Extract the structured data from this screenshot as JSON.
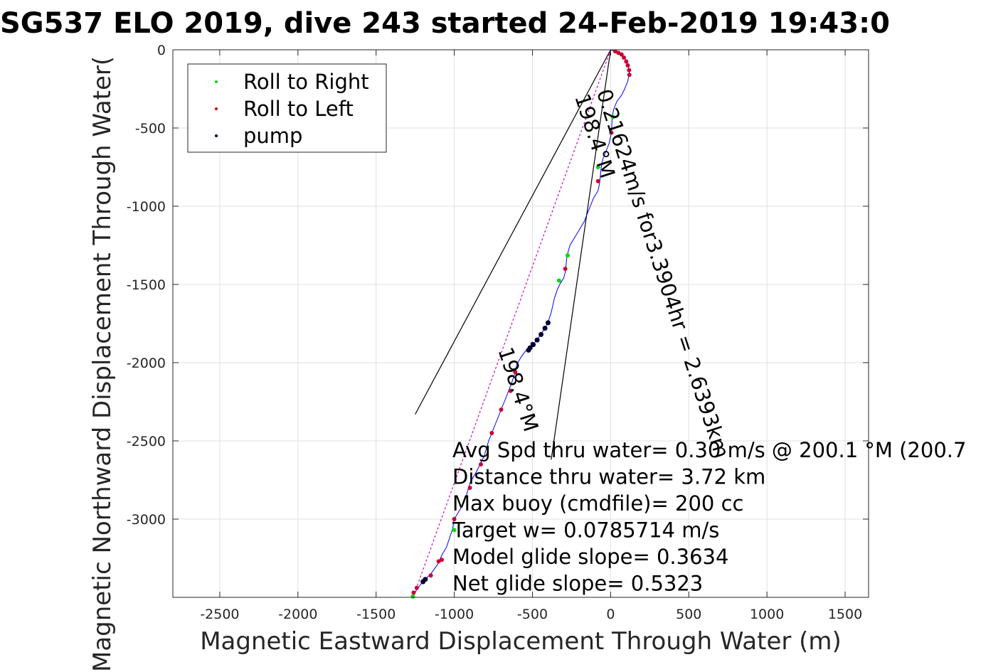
{
  "chart_data": {
    "type": "scatter",
    "title": "SG537 ELO 2019, dive 243 started 24-Feb-2019 19:43:0",
    "xlabel": "Magnetic Eastward Displacement Through Water (m)",
    "ylabel": "Magnetic Northward Displacement Through Water(",
    "xlim": [
      -2800,
      1650
    ],
    "ylim": [
      -3500,
      0
    ],
    "xticks": [
      -2500,
      -2000,
      -1500,
      -1000,
      -500,
      0,
      500,
      1000,
      1500
    ],
    "yticks": [
      0,
      -500,
      -1000,
      -1500,
      -2000,
      -2500,
      -3000
    ],
    "grid": true,
    "legend_position": "top-left",
    "legend": [
      {
        "label": "Roll to Right",
        "color": "#00dd00"
      },
      {
        "label": "Roll to Left",
        "color": "#dd0000"
      },
      {
        "label": "pump",
        "color": "#000033"
      }
    ],
    "track": {
      "color": "#0000ff",
      "points": [
        [
          0,
          0
        ],
        [
          20,
          -8
        ],
        [
          50,
          -20
        ],
        [
          80,
          -40
        ],
        [
          100,
          -70
        ],
        [
          115,
          -110
        ],
        [
          120,
          -150
        ],
        [
          110,
          -200
        ],
        [
          90,
          -250
        ],
        [
          70,
          -290
        ],
        [
          40,
          -330
        ],
        [
          20,
          -380
        ],
        [
          10,
          -430
        ],
        [
          8,
          -480
        ],
        [
          5,
          -530
        ],
        [
          -10,
          -600
        ],
        [
          -30,
          -650
        ],
        [
          -50,
          -700
        ],
        [
          -60,
          -750
        ],
        [
          -65,
          -800
        ],
        [
          -70,
          -850
        ],
        [
          -80,
          -900
        ],
        [
          -110,
          -950
        ],
        [
          -150,
          -1050
        ],
        [
          -170,
          -1100
        ],
        [
          -200,
          -1150
        ],
        [
          -230,
          -1200
        ],
        [
          -260,
          -1250
        ],
        [
          -280,
          -1320
        ],
        [
          -285,
          -1380
        ],
        [
          -290,
          -1420
        ],
        [
          -300,
          -1460
        ],
        [
          -320,
          -1490
        ],
        [
          -340,
          -1530
        ],
        [
          -360,
          -1590
        ],
        [
          -380,
          -1680
        ],
        [
          -400,
          -1740
        ],
        [
          -420,
          -1780
        ],
        [
          -460,
          -1840
        ],
        [
          -500,
          -1890
        ],
        [
          -540,
          -1920
        ],
        [
          -570,
          -1960
        ],
        [
          -600,
          -2010
        ],
        [
          -610,
          -2060
        ],
        [
          -630,
          -2120
        ],
        [
          -660,
          -2200
        ],
        [
          -700,
          -2300
        ],
        [
          -740,
          -2400
        ],
        [
          -780,
          -2500
        ],
        [
          -810,
          -2600
        ],
        [
          -860,
          -2700
        ],
        [
          -900,
          -2770
        ],
        [
          -920,
          -2840
        ],
        [
          -940,
          -2900
        ],
        [
          -970,
          -2950
        ],
        [
          -1000,
          -3000
        ],
        [
          -1010,
          -3060
        ],
        [
          -1030,
          -3120
        ],
        [
          -1050,
          -3180
        ],
        [
          -1080,
          -3230
        ],
        [
          -1100,
          -3280
        ],
        [
          -1150,
          -3350
        ],
        [
          -1200,
          -3400
        ],
        [
          -1240,
          -3450
        ],
        [
          -1260,
          -3490
        ]
      ]
    },
    "roll_right": [
      [
        15,
        -430
      ],
      [
        -80,
        -750
      ],
      [
        -275,
        -1315
      ],
      [
        -330,
        -1475
      ],
      [
        -1000,
        -3070
      ],
      [
        -1265,
        -3495
      ]
    ],
    "roll_left": [
      [
        30,
        -10
      ],
      [
        50,
        -20
      ],
      [
        70,
        -30
      ],
      [
        85,
        -50
      ],
      [
        100,
        -75
      ],
      [
        110,
        -100
      ],
      [
        118,
        -130
      ],
      [
        120,
        -160
      ],
      [
        5,
        -530
      ],
      [
        -80,
        -840
      ],
      [
        -290,
        -1400
      ],
      [
        -500,
        -1880
      ],
      [
        -610,
        -2060
      ],
      [
        -640,
        -2180
      ],
      [
        -700,
        -2300
      ],
      [
        -760,
        -2450
      ],
      [
        -830,
        -2650
      ],
      [
        -900,
        -2800
      ],
      [
        -1000,
        -3000
      ],
      [
        -1080,
        -3260
      ],
      [
        -1100,
        -3270
      ],
      [
        -1150,
        -3360
      ],
      [
        -1200,
        -3400
      ],
      [
        -1240,
        -3440
      ],
      [
        -1260,
        -3470
      ]
    ],
    "pump": [
      [
        -400,
        -1745
      ],
      [
        -420,
        -1780
      ],
      [
        -445,
        -1820
      ],
      [
        -470,
        -1855
      ],
      [
        -495,
        -1885
      ],
      [
        -515,
        -1905
      ],
      [
        -525,
        -1920
      ],
      [
        -1185,
        -3385
      ],
      [
        -1200,
        -3400
      ]
    ],
    "lines": [
      {
        "color": "#000000",
        "points": [
          [
            0,
            0
          ],
          [
            -1250,
            -2330
          ]
        ]
      },
      {
        "color": "#000000",
        "points": [
          [
            0,
            0
          ],
          [
            -380,
            -2620
          ]
        ]
      },
      {
        "color": "#cc00cc",
        "dash": true,
        "points": [
          [
            0,
            0
          ],
          [
            -1260,
            -3490
          ]
        ]
      }
    ],
    "rotated_labels": [
      {
        "text": "0.21624m/s for3.3904hr = 2.6393km",
        "x": -90,
        "y": -270,
        "angle": 72
      },
      {
        "text": "198.4°M",
        "x": -230,
        "y": -300,
        "angle": 72
      },
      {
        "text": "198.4°M",
        "x": -720,
        "y": -1920,
        "angle": 72
      }
    ],
    "annotations": [
      "Avg Spd thru water=  0.30 m/s @ 200.1 °M (200.7",
      "Distance thru water=  3.72 km",
      "Max buoy (cmdfile)= 200 cc",
      "Target w= 0.0785714 m/s",
      "Model glide slope= 0.3634",
      "Net glide slope= 0.5323"
    ]
  }
}
